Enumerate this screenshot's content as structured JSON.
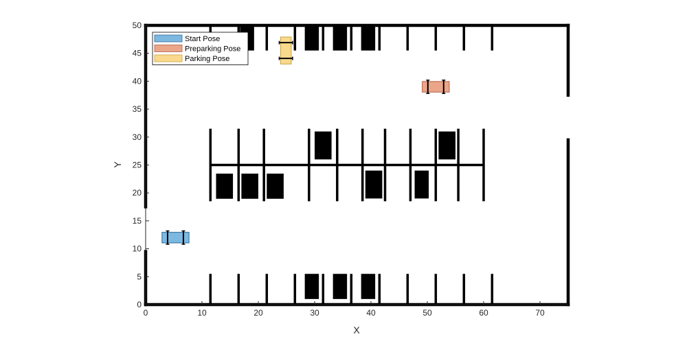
{
  "chart_data": {
    "type": "scatter",
    "title": "",
    "xlabel": "X",
    "ylabel": "Y",
    "xlim": [
      0,
      75
    ],
    "ylim": [
      0,
      50
    ],
    "x_ticks": [
      0,
      10,
      20,
      30,
      40,
      50,
      60,
      70
    ],
    "y_ticks": [
      0,
      5,
      10,
      15,
      20,
      25,
      30,
      35,
      40,
      45,
      50
    ],
    "grid": false,
    "legend_position": "top-left",
    "map": {
      "boundary_walls": [
        [
          [
            0,
            0
          ],
          [
            75,
            0
          ]
        ],
        [
          [
            0,
            50
          ],
          [
            75,
            50
          ]
        ],
        [
          [
            0,
            0
          ],
          [
            0,
            9.5
          ]
        ],
        [
          [
            0,
            17.5
          ],
          [
            0,
            50
          ]
        ],
        [
          [
            75,
            0
          ],
          [
            75,
            29.5
          ]
        ],
        [
          [
            75,
            37.5
          ],
          [
            75,
            50
          ]
        ]
      ],
      "center_divider": [
        [
          11.5,
          25
        ],
        [
          60,
          25
        ]
      ],
      "center_dividers_x": [
        11.5,
        16.5,
        21,
        29,
        34,
        38.5,
        42.5,
        47,
        51.5,
        55.5,
        60
      ],
      "center_divider_y_range": [
        18.5,
        31.5
      ],
      "top_dividers_x": [
        11.5,
        16.5,
        21.5,
        26.5,
        31.5,
        36.5,
        41.5,
        46.5,
        51.5,
        56.5,
        61.5
      ],
      "top_divider_y_range": [
        45.5,
        50
      ],
      "bottom_dividers_x": [
        11.5,
        16.5,
        21.5,
        26.5,
        31.5,
        36.5,
        41.5,
        46.5,
        51.5,
        56.5,
        61.5
      ],
      "bottom_divider_y_range": [
        0,
        5.5
      ],
      "parked_cars": [
        {
          "x": 18,
          "y": 47.75,
          "w": 2.5,
          "h": 4.5
        },
        {
          "x": 29.5,
          "y": 47.75,
          "w": 2.5,
          "h": 4.5
        },
        {
          "x": 34.5,
          "y": 47.75,
          "w": 2.5,
          "h": 4.5
        },
        {
          "x": 39.5,
          "y": 47.75,
          "w": 2.5,
          "h": 4.5
        },
        {
          "x": 31.5,
          "y": 28.5,
          "w": 3,
          "h": 5
        },
        {
          "x": 53.5,
          "y": 28.5,
          "w": 3,
          "h": 5
        },
        {
          "x": 14,
          "y": 21.2,
          "w": 3,
          "h": 4.5
        },
        {
          "x": 18.5,
          "y": 21.2,
          "w": 3,
          "h": 4.5
        },
        {
          "x": 23,
          "y": 21.2,
          "w": 3,
          "h": 4.5
        },
        {
          "x": 40.5,
          "y": 21.5,
          "w": 3,
          "h": 5
        },
        {
          "x": 49,
          "y": 21.5,
          "w": 2.5,
          "h": 5
        },
        {
          "x": 29.5,
          "y": 3.25,
          "w": 2.5,
          "h": 4.5
        },
        {
          "x": 34.5,
          "y": 3.25,
          "w": 2.5,
          "h": 4.5
        },
        {
          "x": 39.5,
          "y": 3.25,
          "w": 2.5,
          "h": 4.5
        }
      ]
    },
    "series": [
      {
        "name": "Start Pose",
        "color": "#7db8e0",
        "edge": "#2a6a9a",
        "x": 5.3,
        "y": 12,
        "angle_deg": 0,
        "length": 4.8,
        "width": 1.9,
        "axles_x_offset": [
          -1.4,
          1.4
        ]
      },
      {
        "name": "Preparking Pose",
        "color": "#eba588",
        "edge": "#b0604a",
        "x": 51.5,
        "y": 39,
        "angle_deg": 0,
        "length": 4.8,
        "width": 1.9,
        "axles_x_offset": [
          -1.4,
          1.4
        ]
      },
      {
        "name": "Parking Pose",
        "color": "#f9d98c",
        "edge": "#c9a040",
        "x": 24.9,
        "y": 45.5,
        "angle_deg": 90,
        "length": 4.8,
        "width": 1.9,
        "axles_x_offset": [
          -1.4,
          1.4
        ]
      }
    ]
  }
}
